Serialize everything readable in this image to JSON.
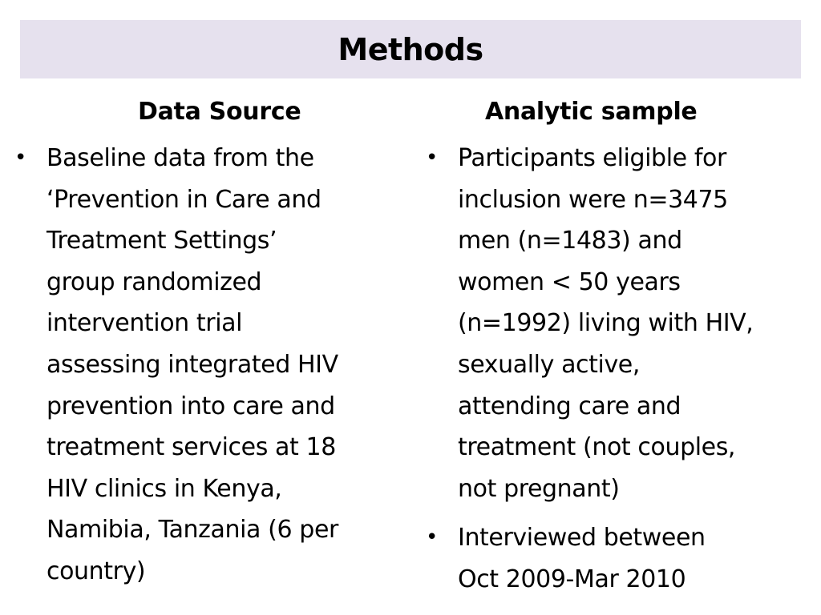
{
  "slide": {
    "title": "Methods"
  },
  "left_column": {
    "heading": "Data Source",
    "bullets": [
      {
        "lines": [
          "Baseline data from the",
          "‘Prevention in Care and",
          "Treatment Settings’",
          "group randomized",
          "intervention trial",
          "assessing integrated HIV",
          "prevention into care and",
          "treatment services at 18",
          "HIV clinics in Kenya,",
          "Namibia, Tanzania (6 per",
          "country)"
        ]
      }
    ]
  },
  "right_column": {
    "heading": "Analytic sample",
    "bullets": [
      {
        "lines": [
          "Participants eligible for",
          "inclusion were n=3475",
          "men (n=1483) and",
          "women < 50 years",
          "(n=1992) living with HIV,",
          "sexually active,",
          "attending care and",
          "treatment (not couples,",
          "not pregnant)"
        ]
      },
      {
        "lines": [
          "Interviewed between",
          "Oct 2009-Mar 2010"
        ]
      }
    ]
  },
  "colors": {
    "title_bar_background": "#e6e1ee",
    "text": "#000000",
    "background": "#ffffff"
  },
  "icons": {
    "bullet": "bullet-icon"
  }
}
